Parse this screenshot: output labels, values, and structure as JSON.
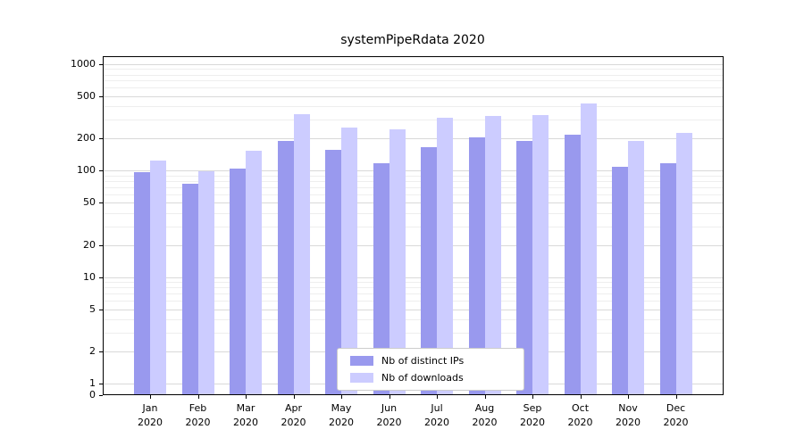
{
  "chart_data": {
    "type": "bar",
    "title": "systemPipeRdata 2020",
    "categories": [
      "Jan 2020",
      "Feb 2020",
      "Mar 2020",
      "Apr 2020",
      "May 2020",
      "Jun 2020",
      "Jul 2020",
      "Aug 2020",
      "Sep 2020",
      "Oct 2020",
      "Nov 2020",
      "Dec 2020"
    ],
    "series": [
      {
        "name": "Nb of distinct IPs",
        "color": "#9999ee",
        "values": [
          97,
          76,
          104,
          190,
          158,
          117,
          165,
          205,
          190,
          218,
          108,
          118
        ]
      },
      {
        "name": "Nb of downloads",
        "color": "#ccccff",
        "values": [
          125,
          99,
          155,
          338,
          255,
          243,
          315,
          325,
          330,
          430,
          192,
          225
        ]
      }
    ],
    "yscale": "log",
    "y_ticks": [
      0,
      1,
      2,
      5,
      10,
      20,
      50,
      100,
      200,
      500,
      1000
    ],
    "y_minor_ticks": [
      3,
      4,
      6,
      7,
      8,
      9,
      30,
      40,
      60,
      70,
      80,
      90,
      300,
      400,
      600,
      700,
      800,
      900
    ],
    "ylim": [
      0,
      1200
    ],
    "xlabel": "",
    "ylabel": "",
    "grid": true,
    "grid_color_major": "#d9d9d9",
    "grid_color_minor": "#eeeeee",
    "legend_position": "lower center"
  }
}
